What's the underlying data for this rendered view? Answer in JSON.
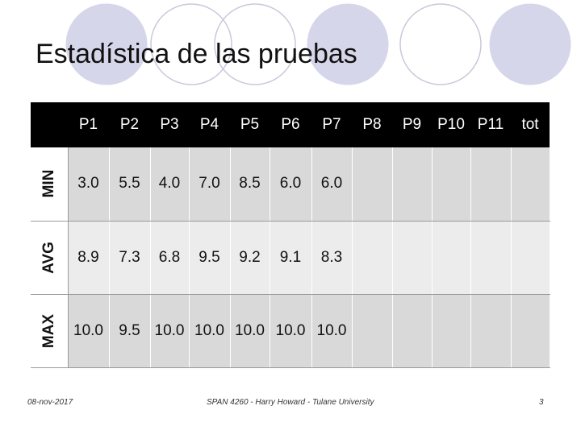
{
  "slide": {
    "title": "Estadística de las pruebas"
  },
  "table": {
    "columns": [
      "P1",
      "P2",
      "P3",
      "P4",
      "P5",
      "P6",
      "P7",
      "P8",
      "P9",
      "P10",
      "P11",
      "tot"
    ],
    "rows": [
      {
        "label": "MIN",
        "values": [
          "3.0",
          "5.5",
          "4.0",
          "7.0",
          "8.5",
          "6.0",
          "6.0",
          "",
          "",
          "",
          "",
          ""
        ]
      },
      {
        "label": "AVG",
        "values": [
          "8.9",
          "7.3",
          "6.8",
          "9.5",
          "9.2",
          "9.1",
          "8.3",
          "",
          "",
          "",
          "",
          ""
        ]
      },
      {
        "label": "MAX",
        "values": [
          "10.0",
          "9.5",
          "10.0",
          "10.0",
          "10.0",
          "10.0",
          "10.0",
          "",
          "",
          "",
          "",
          ""
        ]
      }
    ]
  },
  "footer": {
    "date": "08-nov-2017",
    "center": "SPAN 4260 - Harry Howard - Tulane University",
    "page": "3"
  },
  "colors": {
    "header_bg": "#000000",
    "row_odd": "#d9d9d9",
    "row_even": "#ececec",
    "circle_fill": "#d6d6ea"
  }
}
